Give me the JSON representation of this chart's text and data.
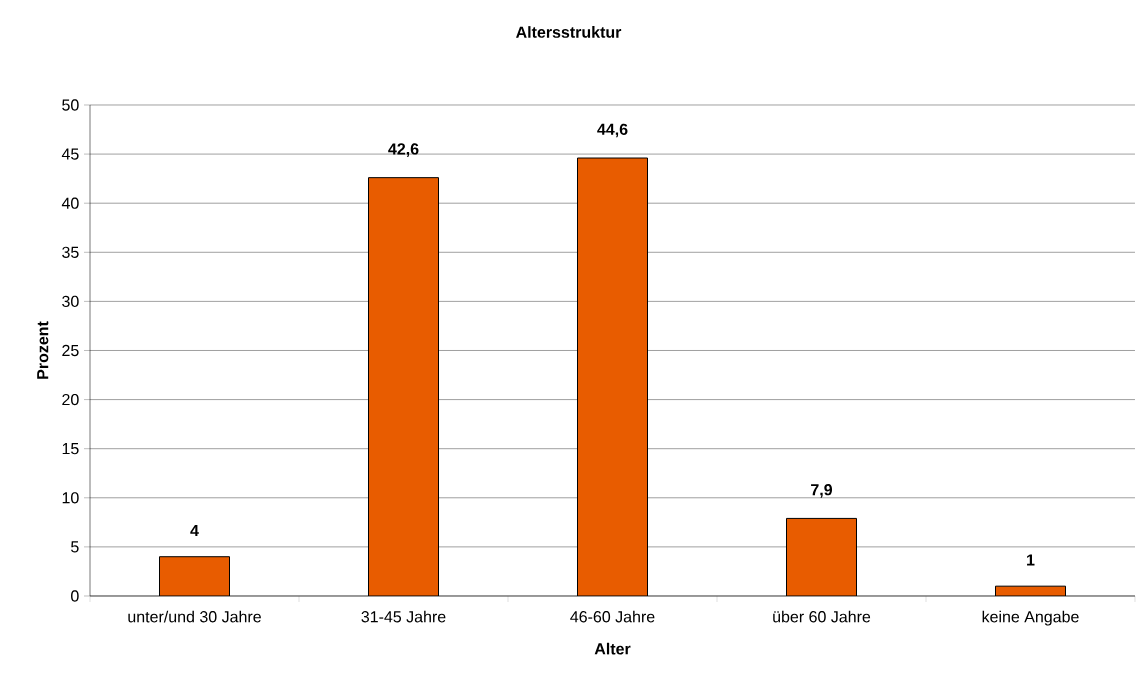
{
  "chart_data": {
    "type": "bar",
    "title": "Altersstruktur",
    "xlabel": "Alter",
    "ylabel": "Prozent",
    "categories": [
      "unter/und 30 Jahre",
      "31-45 Jahre",
      "46-60 Jahre",
      "über 60 Jahre",
      "keine Angabe"
    ],
    "values": [
      4,
      42.6,
      44.6,
      7.9,
      1
    ],
    "value_labels": [
      "4",
      "42,6",
      "44,6",
      "7,9",
      "1"
    ],
    "color": "#e85c00",
    "ylim": [
      0,
      50
    ],
    "yticks": [
      0,
      5,
      10,
      15,
      20,
      25,
      30,
      35,
      40,
      45,
      50
    ],
    "grid": "y"
  }
}
